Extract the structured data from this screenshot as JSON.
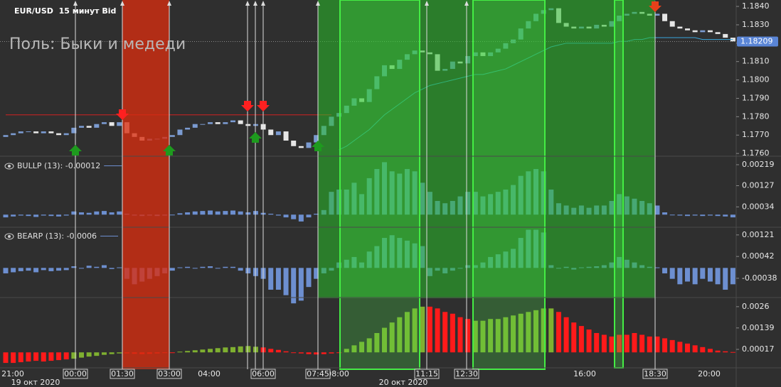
{
  "chart_data": [
    {
      "type": "candlestick",
      "title": "EUR/USD  15 минут Bid",
      "subtitle": "Поль: Быки и медеди",
      "open": [
        1.1769,
        1.177,
        1.1771,
        1.1772,
        1.1772,
        1.1771,
        1.1772,
        1.1771,
        1.177,
        1.1771,
        1.1774,
        1.1775,
        1.1774,
        1.1776,
        1.1777,
        1.1775,
        1.1777,
        1.1771,
        1.1769,
        1.1767,
        1.1768,
        1.1768,
        1.1769,
        1.177,
        1.1773,
        1.1774,
        1.1776,
        1.1776,
        1.1777,
        1.1776,
        1.1777,
        1.1778,
        1.1776,
        1.1775,
        1.1776,
        1.1773,
        1.177,
        1.1772,
        1.1767,
        1.1764,
        1.1763,
        1.1766,
        1.177,
        1.1775,
        1.178,
        1.1782,
        1.1786,
        1.179,
        1.1788,
        1.1795,
        1.1802,
        1.1808,
        1.1806,
        1.1811,
        1.1814,
        1.1816,
        1.1815,
        1.1814,
        1.1805,
        1.1806,
        1.181,
        1.1809,
        1.1813,
        1.1815,
        1.1813,
        1.1815,
        1.1817,
        1.182,
        1.1822,
        1.1828,
        1.1832,
        1.1836,
        1.1838,
        1.1839,
        1.1831,
        1.1829,
        1.1828,
        1.1829,
        1.1828,
        1.183,
        1.1829,
        1.1832,
        1.1835,
        1.1836,
        1.1837,
        1.1836,
        1.1835,
        1.1836,
        1.1832,
        1.1829,
        1.1828,
        1.1827,
        1.1826,
        1.1827,
        1.1826,
        1.1825,
        1.1823
      ],
      "close": [
        1.177,
        1.1771,
        1.1772,
        1.1772,
        1.1771,
        1.1772,
        1.1771,
        1.177,
        1.1771,
        1.1774,
        1.1775,
        1.1774,
        1.1776,
        1.1777,
        1.1775,
        1.1777,
        1.1771,
        1.1769,
        1.1767,
        1.1768,
        1.1768,
        1.1769,
        1.177,
        1.1773,
        1.1774,
        1.1776,
        1.1776,
        1.1777,
        1.1776,
        1.1777,
        1.1778,
        1.1776,
        1.1775,
        1.1776,
        1.1773,
        1.177,
        1.1772,
        1.1767,
        1.1764,
        1.1763,
        1.1766,
        1.177,
        1.1775,
        1.178,
        1.1782,
        1.1786,
        1.179,
        1.1788,
        1.1795,
        1.1802,
        1.1808,
        1.1806,
        1.1811,
        1.1814,
        1.1816,
        1.1815,
        1.1814,
        1.1805,
        1.1806,
        1.181,
        1.1809,
        1.1813,
        1.1815,
        1.1813,
        1.1815,
        1.1817,
        1.182,
        1.1822,
        1.1828,
        1.1832,
        1.1836,
        1.1838,
        1.1839,
        1.1831,
        1.1829,
        1.1828,
        1.1829,
        1.1828,
        1.183,
        1.1829,
        1.1832,
        1.1835,
        1.1836,
        1.1837,
        1.1836,
        1.1835,
        1.1836,
        1.1832,
        1.1829,
        1.1828,
        1.1827,
        1.1826,
        1.1827,
        1.1826,
        1.1825,
        1.1823,
        1.1821
      ],
      "up_color": "#7b9bd1",
      "down_color": "#e6e6e6",
      "series": [
        {
          "color": "#d42020",
          "values": [
            1.1781,
            1.1781,
            1.1781,
            1.1781,
            1.1781,
            1.1781,
            1.1781,
            1.1781,
            1.1781,
            1.1781,
            1.1781,
            1.1781,
            1.1781,
            1.1781,
            1.1781,
            1.1781,
            1.1781,
            1.1781,
            1.1781,
            1.1781,
            1.1781,
            1.1781,
            1.1781,
            1.1781,
            1.1781,
            1.1781,
            1.1781,
            1.1781,
            1.1781,
            1.1781,
            1.1781,
            1.1781,
            1.1781,
            1.1781,
            1.1781,
            1.1781,
            1.1781,
            1.1781,
            1.1781,
            1.1781,
            1.1781,
            1.1781,
            1.1781,
            1.1781,
            null,
            null,
            null,
            null,
            null,
            null,
            null,
            null,
            null,
            null,
            null,
            null,
            null,
            null,
            null,
            null,
            null,
            null,
            null,
            null,
            null,
            null,
            null,
            null,
            null,
            null,
            null,
            null,
            null,
            null,
            null,
            null,
            null,
            null,
            null,
            null,
            null,
            null,
            null,
            null,
            null,
            null,
            null,
            null,
            null,
            null,
            null,
            null,
            null,
            null,
            null,
            null,
            null
          ]
        },
        {
          "color": "#3aa6dc",
          "values": [
            null,
            null,
            null,
            null,
            null,
            null,
            null,
            null,
            null,
            null,
            null,
            null,
            null,
            null,
            null,
            null,
            null,
            null,
            null,
            null,
            null,
            null,
            null,
            null,
            null,
            null,
            null,
            null,
            null,
            null,
            null,
            null,
            null,
            null,
            null,
            null,
            null,
            null,
            null,
            null,
            null,
            null,
            null,
            null,
            1.1762,
            1.1764,
            1.1767,
            1.177,
            1.1773,
            1.1777,
            1.1781,
            1.1784,
            1.1787,
            1.179,
            1.1793,
            1.1795,
            1.1797,
            1.1798,
            1.1799,
            1.18,
            1.1801,
            1.1802,
            1.1803,
            1.1803,
            1.1804,
            1.1805,
            1.1806,
            1.1808,
            1.181,
            1.1812,
            1.1814,
            1.1816,
            1.1818,
            1.1819,
            1.182,
            1.182,
            1.182,
            1.182,
            1.182,
            1.182,
            1.182,
            1.1821,
            1.1821,
            1.1822,
            1.1822,
            1.1823,
            1.1823,
            1.1823,
            1.1823,
            1.1823,
            1.1823,
            1.1823,
            1.1822,
            1.1822,
            1.1822,
            1.1822,
            1.1822
          ]
        }
      ],
      "ylim": [
        1.17585,
        1.18435
      ],
      "yticks": [
        {
          "value": 1.184,
          "label": "1.1840"
        },
        {
          "value": 1.183,
          "label": "1.1830"
        },
        {
          "value": 1.182,
          "label": "1.1820"
        },
        {
          "value": 1.181,
          "label": "1.1810"
        },
        {
          "value": 1.18,
          "label": "1.1800"
        },
        {
          "value": 1.179,
          "label": "1.1790"
        },
        {
          "value": 1.178,
          "label": "1.1780"
        },
        {
          "value": 1.177,
          "label": "1.1770"
        },
        {
          "value": 1.176,
          "label": "1.1760"
        }
      ],
      "current_price": 1.18209
    },
    {
      "type": "bar",
      "title": "BULLP (13): -0.00012",
      "color": "#6d8fd0",
      "values": [
        -0.00012,
        -8e-05,
        -4e-05,
        -6e-05,
        -0.0001,
        -4e-05,
        -6e-05,
        -8e-05,
        -4e-05,
        0.00014,
        0.0001,
        8e-05,
        0.00014,
        0.00016,
        0.0001,
        0.00014,
        4e-05,
        -4e-05,
        -6e-05,
        -4e-05,
        -6e-05,
        -4e-05,
        -2e-05,
        6e-05,
        0.0001,
        0.00014,
        0.00016,
        0.00018,
        0.00014,
        0.00016,
        0.00018,
        0.00014,
        0.0001,
        0.00016,
        8e-05,
        4e-05,
        -4e-05,
        -0.00012,
        -0.0002,
        -0.0003,
        -0.00012,
        4e-05,
        0.0002,
        0.001,
        0.0011,
        0.0011,
        0.0014,
        0.0009,
        0.0016,
        0.002,
        0.0023,
        0.0019,
        0.0018,
        0.002,
        0.0019,
        0.0014,
        0.001,
        0.0006,
        0.0005,
        0.0006,
        0.0008,
        0.001,
        0.001,
        0.0008,
        0.0009,
        0.001,
        0.0011,
        0.0013,
        0.0017,
        0.0019,
        0.002,
        0.0019,
        0.0011,
        0.0005,
        0.0004,
        0.0003,
        0.0004,
        0.0003,
        0.0004,
        0.0004,
        0.0006,
        0.0009,
        0.0008,
        0.0007,
        0.0006,
        0.0005,
        0.0004,
        0.0001,
        -2e-05,
        -4e-05,
        -6e-05,
        -4e-05,
        -6e-05,
        -4e-05,
        -6e-05,
        -8e-05,
        -0.00012
      ],
      "ylim": [
        -0.00049,
        0.0025
      ],
      "yticks": [
        0.00219,
        0.00127,
        0.00034
      ]
    },
    {
      "type": "bar",
      "title": "BEARP (13): -0.0006",
      "color": "#6d8fd0",
      "values": [
        -0.0002,
        -0.00016,
        -0.00012,
        -0.0001,
        -0.00016,
        -8e-05,
        -0.00012,
        -0.0001,
        -8e-05,
        6e-05,
        -2e-05,
        8e-05,
        4e-05,
        0.0001,
        -4e-05,
        2e-05,
        -0.0004,
        -0.0006,
        -0.0005,
        -0.0004,
        -0.0003,
        -0.0002,
        -0.0001,
        2e-05,
        4e-05,
        -2e-05,
        4e-05,
        6e-05,
        -2e-05,
        4e-05,
        4e-05,
        -0.0001,
        -0.0002,
        -0.0003,
        -0.0004,
        -0.0008,
        -0.0008,
        -0.001,
        -0.0013,
        -0.0012,
        -0.0007,
        -0.0004,
        -0.0002,
        -0.0001,
        0.0002,
        0.0003,
        0.0004,
        0.0002,
        0.0006,
        0.0008,
        0.0011,
        0.0012,
        0.0011,
        0.001,
        0.0009,
        0.0008,
        -0.0003,
        -0.0001,
        -0.0002,
        -0.0001,
        0.0,
        0.0001,
        0.0001,
        0.0002,
        0.0004,
        0.0005,
        0.0006,
        0.0007,
        0.0011,
        0.0014,
        0.0014,
        0.0013,
        0.0001,
        -2e-05,
        4e-05,
        -6e-05,
        2e-05,
        4e-05,
        6e-05,
        0.0001,
        0.0002,
        0.0004,
        0.0003,
        0.0002,
        0.0001,
        4e-05,
        2e-05,
        -0.0002,
        -0.0004,
        -0.0006,
        -0.0005,
        -0.0006,
        -0.0004,
        -0.0005,
        -0.0006,
        -0.0008,
        -0.0006
      ],
      "ylim": [
        -0.00106,
        0.00144
      ],
      "yticks": [
        0.00121,
        0.00042,
        -0.00038
      ]
    },
    {
      "type": "bar",
      "series": [
        {
          "color": "#ff1a1a",
          "values": [
            -0.0006,
            -0.0006,
            -0.00056,
            -0.00052,
            -0.00048,
            -0.00052,
            -0.00048,
            -0.00044,
            -0.0004,
            null,
            null,
            null,
            null,
            null,
            null,
            null,
            -6e-05,
            -8e-05,
            -0.0001,
            -8e-05,
            -6e-05,
            -4e-05,
            -2e-05,
            null,
            null,
            null,
            null,
            null,
            null,
            null,
            null,
            null,
            null,
            null,
            0.00028,
            0.0002,
            0.00014,
            6e-05,
            0.0,
            -6e-05,
            -0.0001,
            -0.00012,
            -0.0001,
            -6e-05,
            -2e-05,
            null,
            null,
            null,
            null,
            null,
            null,
            null,
            null,
            null,
            null,
            null,
            0.0026,
            0.0025,
            0.0023,
            0.0022,
            0.002,
            0.0019,
            null,
            null,
            null,
            null,
            null,
            null,
            null,
            null,
            null,
            null,
            null,
            0.0023,
            0.002,
            0.0017,
            0.0015,
            0.0013,
            0.0011,
            0.001,
            0.0009,
            0.001,
            0.001,
            0.0011,
            0.001,
            0.0009,
            0.0009,
            0.0008,
            0.0007,
            0.0006,
            0.0005,
            0.0004,
            0.0003,
            0.0002,
            0.0001,
            6e-05,
            2e-05
          ]
        },
        {
          "color": "#7fb030",
          "values": [
            null,
            null,
            null,
            null,
            null,
            null,
            null,
            null,
            null,
            -0.00036,
            -0.0003,
            -0.00024,
            -0.0002,
            -0.00014,
            -0.0001,
            -6e-05,
            null,
            null,
            null,
            null,
            null,
            null,
            null,
            4e-05,
            8e-05,
            0.00012,
            0.00016,
            0.0002,
            0.00024,
            0.00028,
            0.0003,
            0.00034,
            0.00036,
            0.00032,
            null,
            null,
            null,
            null,
            null,
            null,
            null,
            null,
            null,
            null,
            null,
            0.0002,
            0.0004,
            0.0006,
            0.0008,
            0.0011,
            0.0014,
            0.0017,
            0.002,
            0.0023,
            0.0025,
            0.0026,
            null,
            null,
            null,
            null,
            null,
            null,
            0.0018,
            0.0018,
            0.0019,
            0.0019,
            0.002,
            0.0021,
            0.0022,
            0.0023,
            0.0024,
            0.0025,
            0.0025,
            null,
            null,
            null,
            null,
            null,
            null,
            null,
            null,
            null,
            null,
            null,
            null,
            null,
            null,
            null,
            null,
            null,
            null,
            null,
            null,
            null,
            null,
            null,
            null
          ]
        }
      ],
      "ylim": [
        -0.00088,
        0.00308
      ],
      "yticks": [
        0.0026,
        0.00139,
        0.00017
      ]
    }
  ],
  "time_axis": {
    "labels": [
      "21:00",
      "04:00",
      "08:00",
      "16:00",
      "20:00"
    ],
    "markers": [
      "00:00",
      "01:30",
      "03:00",
      "06:00",
      "07:45",
      "11:15",
      "12:30",
      "18:30"
    ],
    "dates": [
      "19 окт 2020",
      "20 окт 2020"
    ]
  }
}
